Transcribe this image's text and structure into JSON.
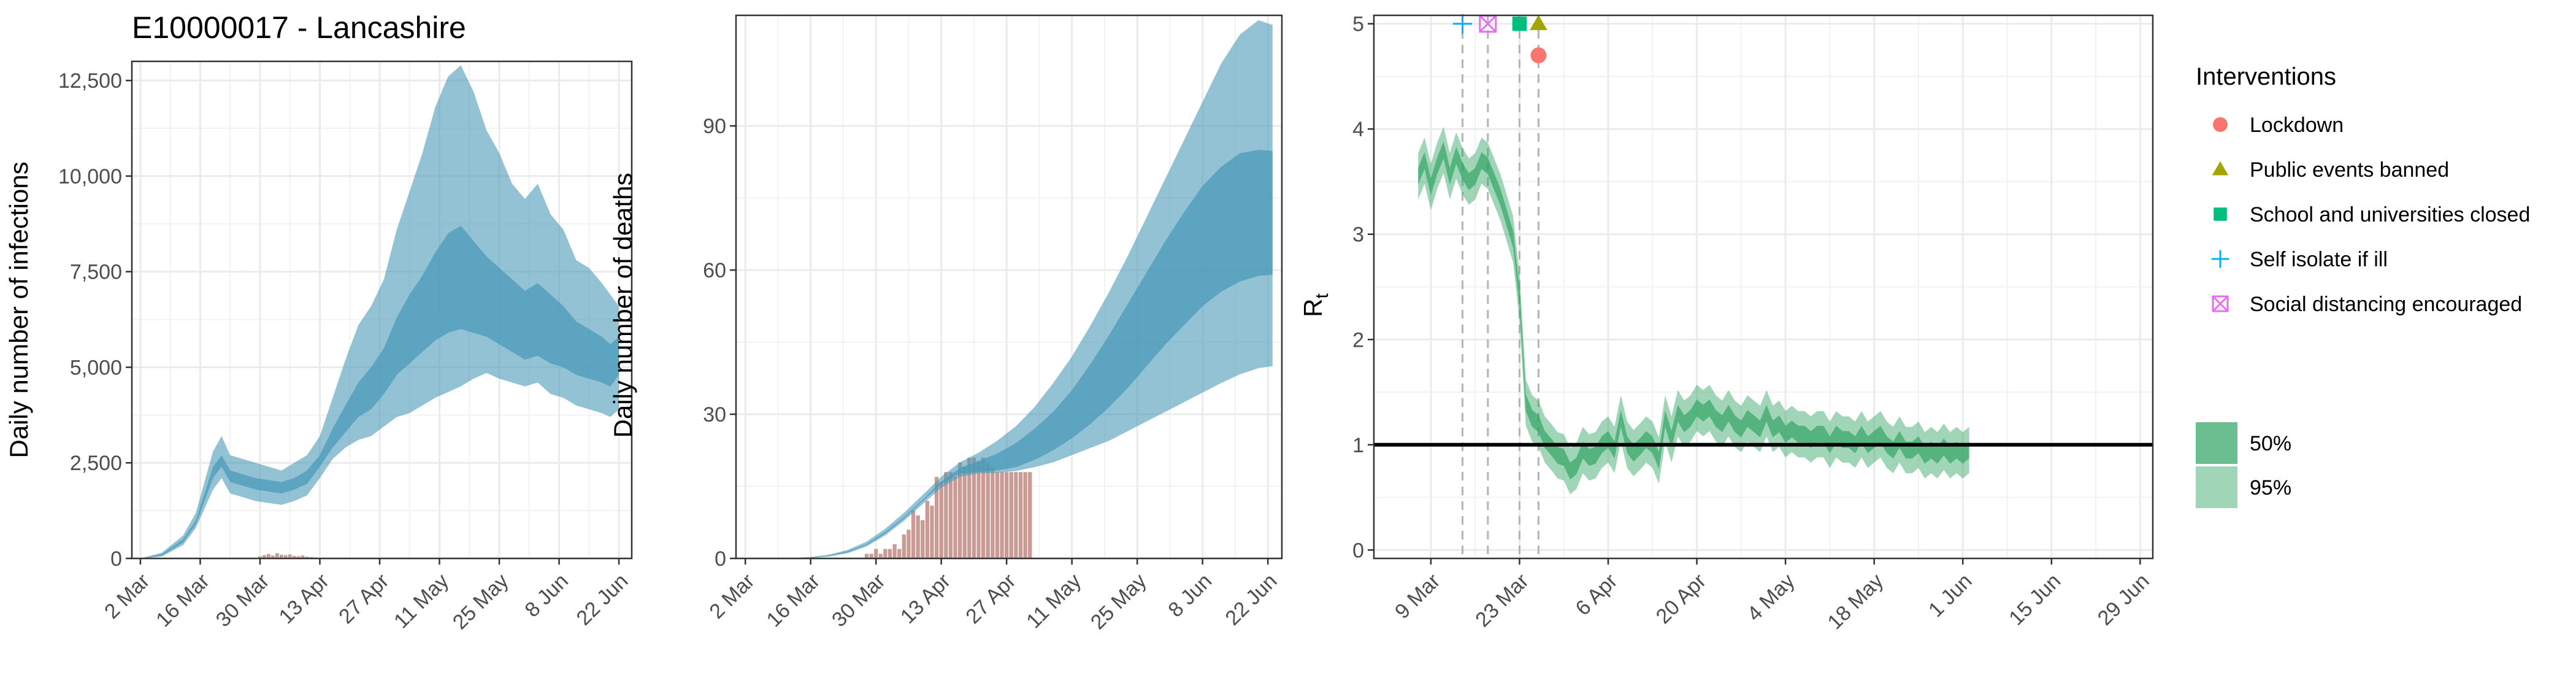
{
  "title": "E10000017 - Lancashire",
  "colors": {
    "infections_band": "#4a9ab8",
    "deaths_bar": "#c4908a",
    "rt_band": "#2ca25f",
    "reference_line": "#000000",
    "grid": "#ebebeb",
    "lockdown": "#f8766d",
    "public_events": "#a3a500",
    "school": "#00bf7d",
    "self_isolate": "#00b0f6",
    "social_distancing": "#e76bf3"
  },
  "chart_data": [
    {
      "type": "area",
      "id": "infections",
      "ylabel": "Daily number of infections",
      "ylim": [
        0,
        13000
      ],
      "y_ticks": [
        0,
        2500,
        5000,
        7500,
        10000,
        12500
      ],
      "y_tick_labels": [
        "0",
        "2,500",
        "5,000",
        "7,500",
        "10,000",
        "12,500"
      ],
      "x_ticks": [
        "2 Mar",
        "16 Mar",
        "30 Mar",
        "13 Apr",
        "27 Apr",
        "11 May",
        "25 May",
        "8 Jun",
        "22 Jun"
      ],
      "xlim_days": [
        -2,
        115
      ],
      "grid": true,
      "series": [
        {
          "name": "95%",
          "x": [
            0,
            5,
            10,
            13,
            15,
            17,
            19,
            21,
            24,
            27,
            30,
            33,
            36,
            39,
            42,
            45,
            48,
            51,
            54,
            57,
            60,
            63,
            66,
            69,
            72,
            75,
            78,
            81,
            84,
            87,
            90,
            93,
            96,
            99,
            102,
            105,
            108,
            110,
            112
          ],
          "upper": [
            0,
            150,
            600,
            1200,
            2000,
            2800,
            3200,
            2700,
            2600,
            2500,
            2400,
            2300,
            2500,
            2700,
            3200,
            4200,
            5200,
            6100,
            6600,
            7300,
            8600,
            9600,
            10600,
            11800,
            12600,
            12900,
            12200,
            11200,
            10600,
            9800,
            9400,
            9800,
            9000,
            8600,
            7800,
            7600,
            7200,
            6900,
            6600
          ],
          "lower": [
            0,
            50,
            350,
            800,
            1300,
            1800,
            2100,
            1700,
            1600,
            1500,
            1450,
            1400,
            1500,
            1650,
            2100,
            2600,
            2900,
            3100,
            3200,
            3450,
            3700,
            3800,
            4000,
            4200,
            4350,
            4500,
            4700,
            4850,
            4700,
            4600,
            4500,
            4600,
            4300,
            4200,
            4000,
            3900,
            3800,
            3700,
            3900
          ]
        },
        {
          "name": "50%",
          "x": [
            0,
            5,
            10,
            13,
            15,
            17,
            19,
            21,
            24,
            27,
            30,
            33,
            36,
            39,
            42,
            45,
            48,
            51,
            54,
            57,
            60,
            63,
            66,
            69,
            72,
            75,
            78,
            81,
            84,
            87,
            90,
            93,
            96,
            99,
            102,
            105,
            108,
            110,
            112
          ],
          "upper": [
            0,
            110,
            500,
            1000,
            1700,
            2400,
            2700,
            2300,
            2200,
            2100,
            2050,
            2000,
            2100,
            2300,
            2700,
            3400,
            4000,
            4600,
            5000,
            5500,
            6300,
            6900,
            7400,
            8000,
            8500,
            8700,
            8300,
            7900,
            7600,
            7300,
            7000,
            7200,
            6900,
            6600,
            6200,
            6000,
            5800,
            5600,
            5800
          ],
          "lower": [
            0,
            70,
            420,
            900,
            1500,
            2100,
            2400,
            2000,
            1900,
            1800,
            1750,
            1700,
            1800,
            1950,
            2400,
            2900,
            3300,
            3700,
            3900,
            4300,
            4800,
            5100,
            5400,
            5700,
            5900,
            6000,
            5900,
            5800,
            5600,
            5400,
            5200,
            5300,
            5100,
            5000,
            4800,
            4700,
            4600,
            4500,
            4800
          ]
        }
      ],
      "observed_bars": {
        "x": [
          28,
          29,
          30,
          31,
          32,
          33,
          34,
          35,
          36,
          37,
          38,
          39,
          40,
          41,
          42,
          43
        ],
        "values": [
          60,
          90,
          120,
          80,
          140,
          100,
          90,
          110,
          70,
          60,
          80,
          50,
          40,
          30,
          20,
          10
        ]
      }
    },
    {
      "type": "area",
      "id": "deaths",
      "ylabel": "Daily number of deaths",
      "ylim": [
        0,
        113
      ],
      "y_ticks": [
        0,
        30,
        60,
        90
      ],
      "y_tick_labels": [
        "0",
        "30",
        "60",
        "90"
      ],
      "x_ticks": [
        "2 Mar",
        "16 Mar",
        "30 Mar",
        "13 Apr",
        "27 Apr",
        "11 May",
        "25 May",
        "8 Jun",
        "22 Jun"
      ],
      "xlim_days": [
        -2,
        115
      ],
      "grid": true,
      "series": [
        {
          "name": "95%",
          "x": [
            0,
            8,
            14,
            18,
            22,
            26,
            30,
            34,
            38,
            42,
            46,
            50,
            54,
            58,
            62,
            66,
            70,
            74,
            78,
            82,
            86,
            90,
            94,
            98,
            102,
            106,
            110,
            113
          ],
          "upper": [
            0,
            0,
            0.3,
            0.8,
            1.8,
            3.5,
            6.2,
            9.5,
            13.2,
            17,
            20,
            22,
            24.5,
            27.5,
            31.5,
            36.5,
            42,
            48.5,
            55.5,
            63,
            71,
            79,
            87,
            95,
            103,
            109,
            112,
            111
          ],
          "lower": [
            0,
            0,
            0.1,
            0.4,
            1.1,
            2.5,
            4.8,
            7.8,
            11.3,
            14.7,
            17,
            17.7,
            17.8,
            18.2,
            19,
            20,
            21.5,
            23,
            24.5,
            26.5,
            28.5,
            30.5,
            32.5,
            34.5,
            36.5,
            38.3,
            39.6,
            40
          ]
        },
        {
          "name": "50%",
          "x": [
            0,
            8,
            14,
            18,
            22,
            26,
            30,
            34,
            38,
            42,
            46,
            50,
            54,
            58,
            62,
            66,
            70,
            74,
            78,
            82,
            86,
            90,
            94,
            98,
            102,
            106,
            110,
            113
          ],
          "upper": [
            0,
            0,
            0.2,
            0.6,
            1.5,
            3,
            5.5,
            8.6,
            12.2,
            16,
            18.8,
            20.3,
            21.8,
            24,
            27,
            30.5,
            35,
            40.5,
            46.5,
            53,
            59.5,
            66,
            72,
            77.5,
            81.5,
            84.3,
            85,
            84.8
          ],
          "lower": [
            0,
            0,
            0.15,
            0.5,
            1.3,
            2.8,
            5.2,
            8.3,
            11.9,
            15.5,
            17.6,
            18,
            18.3,
            19,
            20.5,
            22.5,
            25,
            28,
            31.5,
            35.5,
            40,
            44.5,
            48.5,
            52.5,
            55.5,
            57.6,
            58.8,
            59
          ]
        }
      ],
      "observed_bars": {
        "x": [
          26,
          27,
          28,
          29,
          30,
          31,
          32,
          33,
          34,
          35,
          36,
          37,
          38,
          39,
          40,
          41,
          42,
          43,
          44,
          45,
          46,
          47,
          48,
          49,
          50,
          51,
          52,
          53,
          54,
          55,
          56,
          57,
          58,
          59,
          60,
          61
        ],
        "values": [
          1,
          1,
          2,
          1,
          2,
          2,
          3,
          2,
          5,
          6,
          10,
          9,
          8,
          12,
          11,
          17,
          16,
          18,
          18,
          17,
          20,
          19,
          21,
          21,
          20,
          21,
          20,
          19,
          18,
          18,
          18,
          18,
          18,
          18,
          18,
          18
        ]
      }
    },
    {
      "type": "line",
      "id": "rt",
      "ylabel": "R",
      "ylabel_subscript": "t",
      "ylim": [
        -0.08,
        5.08
      ],
      "y_ticks": [
        0,
        1,
        2,
        3,
        4,
        5
      ],
      "y_tick_labels": [
        "0",
        "1",
        "2",
        "3",
        "4",
        "5"
      ],
      "x_ticks": [
        "9 Mar",
        "23 Mar",
        "6 Apr",
        "20 Apr",
        "4 May",
        "18 May",
        "1 Jun",
        "15 Jun",
        "29 Jun"
      ],
      "xlim_days": [
        -2,
        121
      ],
      "grid": true,
      "reference_line": 1,
      "center": [
        3.55,
        3.7,
        3.45,
        3.65,
        3.8,
        3.55,
        3.75,
        3.6,
        3.5,
        3.55,
        3.7,
        3.65,
        3.5,
        3.35,
        3.15,
        2.95,
        2.4,
        1.4,
        1.25,
        1.2,
        1.05,
        0.98,
        0.9,
        0.88,
        0.75,
        0.8,
        0.95,
        0.88,
        0.9,
        1.0,
        1.05,
        0.95,
        1.25,
        1.0,
        0.92,
        0.98,
        1.05,
        1.0,
        0.85,
        1.25,
        1.05,
        1.3,
        1.2,
        1.25,
        1.35,
        1.3,
        1.35,
        1.25,
        1.2,
        1.3,
        1.2,
        1.15,
        1.25,
        1.2,
        1.15,
        1.3,
        1.15,
        1.2,
        1.1,
        1.15,
        1.1,
        1.1,
        1.05,
        1.1,
        1.1,
        1.0,
        1.1,
        1.05,
        1.05,
        1.0,
        1.1,
        1.0,
        1.05,
        1.1,
        1.0,
        0.95,
        1.05,
        0.95,
        0.95,
        1.0,
        0.9,
        0.95,
        0.9,
        0.98,
        0.9,
        0.95,
        0.9,
        0.95
      ],
      "x_start_day": 5,
      "band50_halfwidth": 0.08,
      "band95_halfwidth": 0.22,
      "interventions": [
        {
          "name": "Self isolate if ill",
          "day": 12,
          "marker_y": 5.0,
          "color_key": "self_isolate",
          "shape": "plus"
        },
        {
          "name": "Social distancing encouraged",
          "day": 16,
          "marker_y": 5.0,
          "color_key": "social_distancing",
          "shape": "boxx"
        },
        {
          "name": "School and universities closed",
          "day": 21,
          "marker_y": 5.0,
          "color_key": "school",
          "shape": "square"
        },
        {
          "name": "Public events banned",
          "day": 24,
          "marker_y": 5.0,
          "color_key": "public_events",
          "shape": "triangle"
        },
        {
          "name": "Lockdown",
          "day": 24,
          "marker_y": 4.7,
          "color_key": "lockdown",
          "shape": "circle"
        }
      ]
    }
  ],
  "legend": {
    "interventions_title": "Interventions",
    "interventions": [
      {
        "label": "Lockdown",
        "color_key": "lockdown",
        "shape": "circle"
      },
      {
        "label": "Public events banned",
        "color_key": "public_events",
        "shape": "triangle"
      },
      {
        "label": "School and universities closed",
        "color_key": "school",
        "shape": "square"
      },
      {
        "label": "Self isolate if ill",
        "color_key": "self_isolate",
        "shape": "plus"
      },
      {
        "label": "Social distancing encouraged",
        "color_key": "social_distancing",
        "shape": "boxx"
      }
    ],
    "bands": [
      {
        "label": "50%"
      },
      {
        "label": "95%"
      }
    ]
  }
}
